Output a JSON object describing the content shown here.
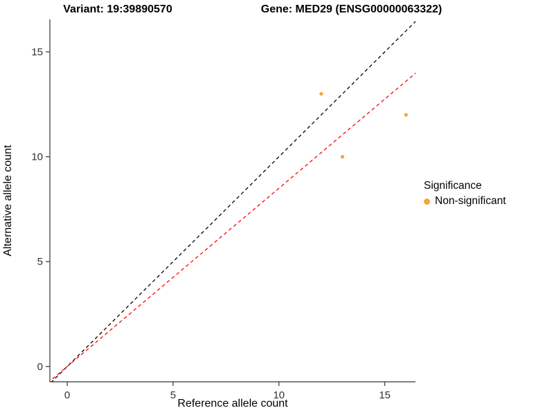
{
  "header": {
    "variant_title": "Variant: 19:39890570",
    "gene_title": "Gene: MED29 (ENSG00000063322)"
  },
  "chart_data": {
    "type": "scatter",
    "title": "Variant: 19:39890570 | Gene: MED29 (ENSG00000063322)",
    "xlabel": "Reference allele count",
    "ylabel": "Alternative allele count",
    "xlim": [
      -0.82,
      16.45
    ],
    "ylim": [
      -0.73,
      16.55
    ],
    "x_ticks": [
      0,
      5,
      10,
      15
    ],
    "y_ticks": [
      0,
      5,
      10,
      15
    ],
    "grid": false,
    "points": [
      {
        "x": 12,
        "y": 13
      },
      {
        "x": 13,
        "y": 10
      },
      {
        "x": 16,
        "y": 12
      }
    ],
    "point_color": "#F8A33C",
    "point_radius": 2.6,
    "lines": [
      {
        "name": "identity-line",
        "slope": 1,
        "intercept": 0,
        "color": "#000000",
        "dash": "5,4"
      },
      {
        "name": "fit-line",
        "slope": 0.85,
        "intercept": 0,
        "color": "#FF0000",
        "dash": "5,4"
      }
    ],
    "legend": {
      "title": "Significance",
      "position": "right",
      "items": [
        {
          "label": "Non-significant",
          "color": "#F8A33C"
        }
      ]
    }
  }
}
